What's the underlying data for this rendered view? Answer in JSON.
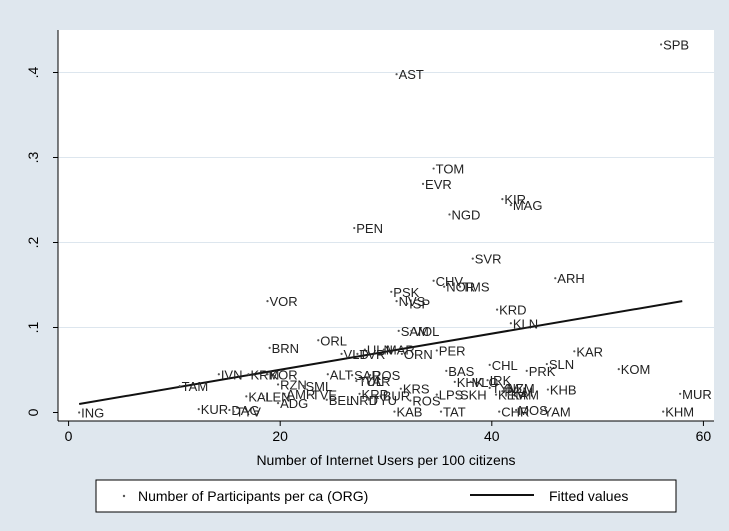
{
  "chart_data": {
    "type": "scatter",
    "title": "",
    "xlabel": "Number of Internet Users per 100 citizens",
    "ylabel": "",
    "xlim": [
      -1,
      61
    ],
    "ylim": [
      -0.01,
      0.45
    ],
    "xticks": [
      0,
      20,
      40,
      60
    ],
    "xtick_labels": [
      "0",
      "20",
      "40",
      "60"
    ],
    "yticks": [
      0,
      0.1,
      0.2,
      0.3,
      0.4
    ],
    "ytick_labels": [
      "0",
      ".1",
      ".2",
      ".3",
      ".4"
    ],
    "grid": "horizontal",
    "legend_position": "bottom",
    "colors": {
      "background": "#dfe7ee",
      "plot_area": "#ffffff",
      "points": "#555555",
      "fit_line": "#111111",
      "grid": "#dde6ee"
    },
    "series": [
      {
        "name": "Number of Participants per ca (ORG)",
        "kind": "points",
        "points": [
          {
            "label": "SPB",
            "x": 56,
            "y": 0.433
          },
          {
            "label": "AST",
            "x": 31,
            "y": 0.398
          },
          {
            "label": "TOM",
            "x": 34.5,
            "y": 0.287
          },
          {
            "label": "EVR",
            "x": 33.5,
            "y": 0.269
          },
          {
            "label": "KIR",
            "x": 41,
            "y": 0.251
          },
          {
            "label": "MAG",
            "x": 41.8,
            "y": 0.244
          },
          {
            "label": "NGD",
            "x": 36,
            "y": 0.233
          },
          {
            "label": "PEN",
            "x": 27,
            "y": 0.217
          },
          {
            "label": "SVR",
            "x": 38.2,
            "y": 0.181
          },
          {
            "label": "ARH",
            "x": 46,
            "y": 0.158
          },
          {
            "label": "CHV",
            "x": 34.5,
            "y": 0.155
          },
          {
            "label": "NOR",
            "x": 35.5,
            "y": 0.148
          },
          {
            "label": "TMS",
            "x": 37,
            "y": 0.148
          },
          {
            "label": "PSK",
            "x": 30.5,
            "y": 0.142
          },
          {
            "label": "NVS",
            "x": 31,
            "y": 0.131
          },
          {
            "label": "VOR",
            "x": 18.8,
            "y": 0.131
          },
          {
            "label": "ISP",
            "x": 32,
            "y": 0.128
          },
          {
            "label": "KRD",
            "x": 40.5,
            "y": 0.121
          },
          {
            "label": "KLN",
            "x": 41.8,
            "y": 0.105
          },
          {
            "label": "SAM",
            "x": 31.2,
            "y": 0.096
          },
          {
            "label": "VOL",
            "x": 32.4,
            "y": 0.096
          },
          {
            "label": "ORL",
            "x": 23.6,
            "y": 0.085
          },
          {
            "label": "PER",
            "x": 34.8,
            "y": 0.073
          },
          {
            "label": "BRN",
            "x": 19,
            "y": 0.076
          },
          {
            "label": "KAR",
            "x": 47.8,
            "y": 0.072
          },
          {
            "label": "ULN",
            "x": 28,
            "y": 0.074
          },
          {
            "label": "MAR",
            "x": 29.8,
            "y": 0.074
          },
          {
            "label": "ORN",
            "x": 31.5,
            "y": 0.069
          },
          {
            "label": "VLD",
            "x": 25.8,
            "y": 0.069
          },
          {
            "label": "TVR",
            "x": 27.3,
            "y": 0.069
          },
          {
            "label": "CHL",
            "x": 39.8,
            "y": 0.056
          },
          {
            "label": "SLN",
            "x": 45.2,
            "y": 0.057
          },
          {
            "label": "KOM",
            "x": 52,
            "y": 0.051
          },
          {
            "label": "PRK",
            "x": 43.3,
            "y": 0.049
          },
          {
            "label": "BAS",
            "x": 35.7,
            "y": 0.049
          },
          {
            "label": "ALT",
            "x": 24.5,
            "y": 0.045
          },
          {
            "label": "SAR",
            "x": 26.8,
            "y": 0.044
          },
          {
            "label": "ROS",
            "x": 28.5,
            "y": 0.044
          },
          {
            "label": "IVN",
            "x": 14.2,
            "y": 0.045
          },
          {
            "label": "KRM",
            "x": 17,
            "y": 0.045
          },
          {
            "label": "KOR",
            "x": 18.8,
            "y": 0.045
          },
          {
            "label": "KHK",
            "x": 36.5,
            "y": 0.036
          },
          {
            "label": "VLG",
            "x": 38,
            "y": 0.036
          },
          {
            "label": "IRK",
            "x": 39.6,
            "y": 0.038
          },
          {
            "label": "TUL",
            "x": 27.2,
            "y": 0.037
          },
          {
            "label": "YAR",
            "x": 27.8,
            "y": 0.037
          },
          {
            "label": "TAM",
            "x": 10.5,
            "y": 0.031
          },
          {
            "label": "RZN",
            "x": 19.8,
            "y": 0.033
          },
          {
            "label": "SML",
            "x": 22.2,
            "y": 0.031
          },
          {
            "label": "TYM",
            "x": 39.8,
            "y": 0.029
          },
          {
            "label": "NZM",
            "x": 41.2,
            "y": 0.029
          },
          {
            "label": "KRS",
            "x": 31.4,
            "y": 0.028
          },
          {
            "label": "KHB",
            "x": 45.3,
            "y": 0.027
          },
          {
            "label": "PRM",
            "x": 41,
            "y": 0.025
          },
          {
            "label": "MUR",
            "x": 57.8,
            "y": 0.022
          },
          {
            "label": "LPS",
            "x": 34.8,
            "y": 0.021
          },
          {
            "label": "SKH",
            "x": 36.8,
            "y": 0.021
          },
          {
            "label": "KEM",
            "x": 40.4,
            "y": 0.021
          },
          {
            "label": "KAM",
            "x": 41.6,
            "y": 0.021
          },
          {
            "label": "AMR",
            "x": 20.4,
            "y": 0.022
          },
          {
            "label": "TVE",
            "x": 22.8,
            "y": 0.021
          },
          {
            "label": "KRP",
            "x": 27.5,
            "y": 0.022
          },
          {
            "label": "BUR",
            "x": 29.5,
            "y": 0.02
          },
          {
            "label": "KAL",
            "x": 16.8,
            "y": 0.019
          },
          {
            "label": "LEN",
            "x": 18.4,
            "y": 0.019
          },
          {
            "label": "BEL",
            "x": 24.4,
            "y": 0.015
          },
          {
            "label": "NRD",
            "x": 26.4,
            "y": 0.015
          },
          {
            "label": "TYU",
            "x": 28.4,
            "y": 0.015
          },
          {
            "label": "ROS",
            "x": 32.3,
            "y": 0.014
          },
          {
            "label": "ADG",
            "x": 19.8,
            "y": 0.011
          },
          {
            "label": "KUR",
            "x": 12.3,
            "y": 0.004
          },
          {
            "label": "DAG",
            "x": 15.2,
            "y": 0.003
          },
          {
            "label": "TYV",
            "x": 15.6,
            "y": 0.001
          },
          {
            "label": "ING",
            "x": 1,
            "y": 0
          },
          {
            "label": "KAB",
            "x": 30.8,
            "y": 0.001
          },
          {
            "label": "TAT",
            "x": 35.2,
            "y": 0.001
          },
          {
            "label": "CHR",
            "x": 40.7,
            "y": 0.001
          },
          {
            "label": "MOS",
            "x": 42.3,
            "y": 0.003
          },
          {
            "label": "YAM",
            "x": 44.7,
            "y": 0.001
          },
          {
            "label": "KHM",
            "x": 56.2,
            "y": 0.001
          }
        ]
      },
      {
        "name": "Fitted values",
        "kind": "line",
        "points": [
          {
            "x": 1,
            "y": 0.01
          },
          {
            "x": 58,
            "y": 0.131
          }
        ]
      }
    ]
  }
}
